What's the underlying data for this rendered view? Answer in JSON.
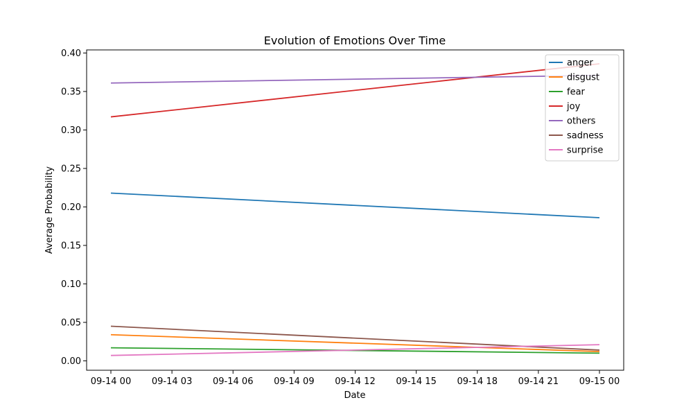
{
  "chart_data": {
    "type": "line",
    "title": "Evolution of Emotions Over Time",
    "xlabel": "Date",
    "ylabel": "Average Probability",
    "x": [
      "2021-09-14 00:00",
      "2021-09-15 00:00"
    ],
    "x_ticks": [
      "09-14 00",
      "09-14 03",
      "09-14 06",
      "09-14 09",
      "09-14 12",
      "09-14 15",
      "09-14 18",
      "09-14 21",
      "09-15 00"
    ],
    "y_ticks": [
      "0.00",
      "0.05",
      "0.10",
      "0.15",
      "0.20",
      "0.25",
      "0.30",
      "0.35",
      "0.40"
    ],
    "ylim": [
      -0.0122,
      0.404
    ],
    "grid": false,
    "legend_position": "top-right",
    "series": [
      {
        "name": "anger",
        "color": "#1f77b4",
        "values": [
          0.218,
          0.186
        ]
      },
      {
        "name": "disgust",
        "color": "#ff7f0e",
        "values": [
          0.034,
          0.012
        ]
      },
      {
        "name": "fear",
        "color": "#2ca02c",
        "values": [
          0.017,
          0.01
        ]
      },
      {
        "name": "joy",
        "color": "#d62728",
        "values": [
          0.317,
          0.386
        ]
      },
      {
        "name": "others",
        "color": "#9467bd",
        "values": [
          0.361,
          0.371
        ]
      },
      {
        "name": "sadness",
        "color": "#8c564b",
        "values": [
          0.045,
          0.014
        ]
      },
      {
        "name": "surprise",
        "color": "#e377c2",
        "values": [
          0.007,
          0.021
        ]
      }
    ]
  }
}
